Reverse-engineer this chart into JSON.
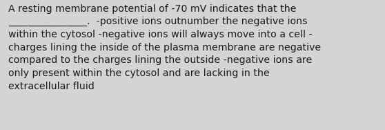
{
  "background_color": "#d4d4d4",
  "text_color": "#1a1a1a",
  "font_size": 10.2,
  "text": "A resting membrane potential of -70 mV indicates that the\n________________.  -positive ions outnumber the negative ions\nwithin the cytosol -negative ions will always move into a cell -\ncharges lining the inside of the plasma membrane are negative\ncompared to the charges lining the outside -negative ions are\nonly present within the cytosol and are lacking in the\nextracellular fluid",
  "figsize": [
    5.58,
    1.88
  ],
  "dpi": 100
}
